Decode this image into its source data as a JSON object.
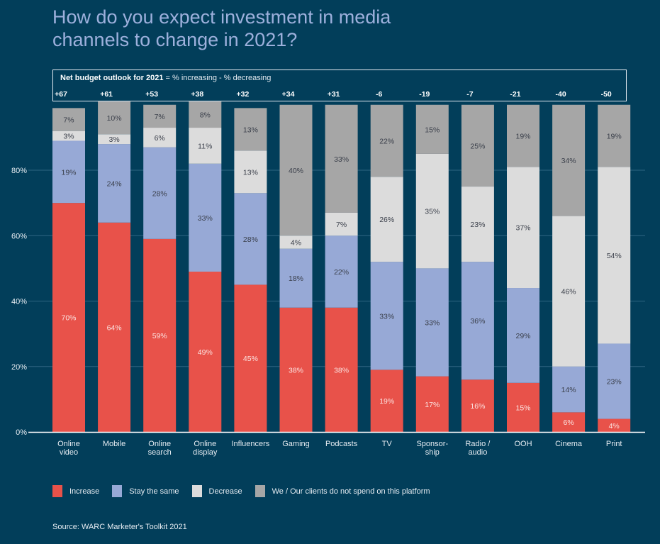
{
  "title": "How do you expect investment in media channels to change in 2021?",
  "net_box": {
    "label_bold": "Net budget outlook for 2021",
    "label_rest": " = % increasing - % decreasing"
  },
  "legend": [
    {
      "key": "increase",
      "label": "Increase",
      "color": "#e8524a"
    },
    {
      "key": "same",
      "label": "Stay the same",
      "color": "#97a9d6"
    },
    {
      "key": "decrease",
      "label": "Decrease",
      "color": "#dcdcdc"
    },
    {
      "key": "nospend",
      "label": "We / Our clients do not spend on this platform",
      "color": "#a6a6a6"
    }
  ],
  "source": "Source: WARC Marketer's Toolkit 2021",
  "chart_data": {
    "type": "bar",
    "stacked": true,
    "title": "How do you expect investment in media channels to change in 2021?",
    "xlabel": "",
    "ylabel": "",
    "ylim": [
      0,
      100
    ],
    "yticks": [
      0,
      20,
      40,
      60,
      80
    ],
    "ytick_labels": [
      "0%",
      "20%",
      "40%",
      "60%",
      "80%"
    ],
    "grid": true,
    "legend_position": "bottom-left",
    "categories": [
      [
        "Online",
        "video"
      ],
      [
        "Mobile"
      ],
      [
        "Online",
        "search"
      ],
      [
        "Online",
        "display"
      ],
      [
        "Influencers"
      ],
      [
        "Gaming"
      ],
      [
        "Podcasts"
      ],
      [
        "TV"
      ],
      [
        "Sponsor-",
        "ship"
      ],
      [
        "Radio /",
        "audio"
      ],
      [
        "OOH"
      ],
      [
        "Cinema"
      ],
      [
        "Print"
      ]
    ],
    "net_budget": [
      "+67",
      "+61",
      "+53",
      "+38",
      "+32",
      "+34",
      "+31",
      "-6",
      "-19",
      "-7",
      "-21",
      "-40",
      "-50"
    ],
    "series": [
      {
        "name": "Increase",
        "color": "#e8524a",
        "label_color": "#fbe3e1",
        "values": [
          70,
          64,
          59,
          49,
          45,
          38,
          38,
          19,
          17,
          16,
          15,
          6,
          4
        ]
      },
      {
        "name": "Stay the same",
        "color": "#97a9d6",
        "label_color": "#3a3f4a",
        "values": [
          19,
          24,
          28,
          33,
          28,
          18,
          22,
          33,
          33,
          36,
          29,
          14,
          23
        ]
      },
      {
        "name": "Decrease",
        "color": "#dcdcdc",
        "label_color": "#3a3f4a",
        "values": [
          3,
          3,
          6,
          11,
          13,
          4,
          7,
          26,
          35,
          23,
          37,
          46,
          54
        ]
      },
      {
        "name": "We / Our clients do not spend on this platform",
        "color": "#a6a6a6",
        "label_color": "#3a3f4a",
        "values": [
          7,
          10,
          7,
          8,
          13,
          40,
          33,
          22,
          15,
          25,
          19,
          34,
          19
        ]
      }
    ]
  }
}
